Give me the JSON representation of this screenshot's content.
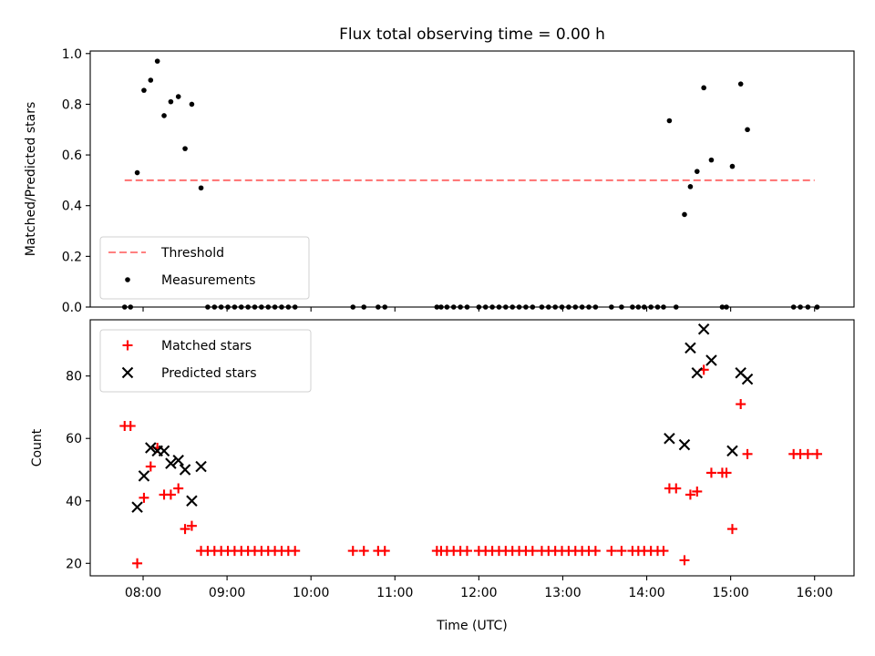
{
  "chart_data": [
    {
      "type": "scatter",
      "title": "Flux total observing time = 0.00 h",
      "xlabel": "",
      "ylabel": "Matched/Predicted stars",
      "x_unit": "hours UTC",
      "xlim": [
        7.37,
        16.47
      ],
      "ylim": [
        0.0,
        1.01
      ],
      "yticks": [
        0.0,
        0.2,
        0.4,
        0.6,
        0.8,
        1.0
      ],
      "ytick_labels": [
        "0.0",
        "0.2",
        "0.4",
        "0.6",
        "0.8",
        "1.0"
      ],
      "legend": {
        "position": "lower-left",
        "entries": [
          {
            "label": "Threshold",
            "kind": "dashed-line",
            "color": "#ff8080"
          },
          {
            "label": "Measurements",
            "kind": "dot",
            "color": "#000000"
          }
        ]
      },
      "threshold": {
        "name": "Threshold",
        "value": 0.5,
        "x_range": [
          7.78,
          16.0
        ],
        "color": "#ff7070"
      },
      "series": [
        {
          "name": "Measurements",
          "marker": "dot",
          "color": "#000000",
          "x": [
            7.78,
            7.85,
            7.93,
            8.01,
            8.09,
            8.17,
            8.25,
            8.33,
            8.42,
            8.5,
            8.58,
            8.69,
            8.77,
            8.85,
            8.93,
            9.01,
            9.09,
            9.17,
            9.25,
            9.33,
            9.41,
            9.49,
            9.57,
            9.65,
            9.73,
            9.81,
            10.5,
            10.63,
            10.8,
            10.88,
            11.5,
            11.55,
            11.62,
            11.7,
            11.78,
            11.86,
            12.0,
            12.08,
            12.16,
            12.24,
            12.32,
            12.4,
            12.48,
            12.56,
            12.64,
            12.75,
            12.83,
            12.91,
            12.99,
            13.07,
            13.15,
            13.23,
            13.31,
            13.39,
            13.58,
            13.7,
            13.83,
            13.9,
            13.97,
            14.05,
            14.13,
            14.2,
            14.27,
            14.35,
            14.45,
            14.52,
            14.6,
            14.68,
            14.77,
            14.9,
            14.95,
            15.02,
            15.12,
            15.2,
            15.75,
            15.83,
            15.92,
            16.03
          ],
          "y": [
            0,
            0,
            0.53,
            0.855,
            0.895,
            0.97,
            0.755,
            0.81,
            0.83,
            0.625,
            0.8,
            0.47,
            0,
            0,
            0,
            0,
            0,
            0,
            0,
            0,
            0,
            0,
            0,
            0,
            0,
            0,
            0,
            0,
            0,
            0,
            0,
            0,
            0,
            0,
            0,
            0,
            0,
            0,
            0,
            0,
            0,
            0,
            0,
            0,
            0,
            0,
            0,
            0,
            0,
            0,
            0,
            0,
            0,
            0,
            0,
            0,
            0,
            0,
            0,
            0,
            0,
            0,
            0.735,
            0,
            0.365,
            0.475,
            0.535,
            0.865,
            0.58,
            0,
            0,
            0.555,
            0.88,
            0.7,
            0,
            0,
            0,
            0
          ]
        }
      ]
    },
    {
      "type": "scatter",
      "title": "",
      "xlabel": "Time (UTC)",
      "ylabel": "Count",
      "x_unit": "hours UTC",
      "xlim": [
        7.37,
        16.47
      ],
      "ylim": [
        16.0,
        98.0
      ],
      "yticks": [
        20,
        40,
        60,
        80
      ],
      "ytick_labels": [
        "20",
        "40",
        "60",
        "80"
      ],
      "xticks": [
        8,
        9,
        10,
        11,
        12,
        13,
        14,
        15,
        16
      ],
      "xtick_labels": [
        "08:00",
        "09:00",
        "10:00",
        "11:00",
        "12:00",
        "13:00",
        "14:00",
        "15:00",
        "16:00"
      ],
      "legend": {
        "position": "top-left",
        "entries": [
          {
            "label": "Matched stars",
            "kind": "plus",
            "color": "#ff0000"
          },
          {
            "label": "Predicted stars",
            "kind": "x",
            "color": "#000000"
          }
        ]
      },
      "series": [
        {
          "name": "Matched stars",
          "marker": "plus",
          "color": "#ff0000",
          "x": [
            7.78,
            7.85,
            7.93,
            8.01,
            8.09,
            8.17,
            8.25,
            8.33,
            8.42,
            8.5,
            8.58,
            8.69,
            8.77,
            8.85,
            8.93,
            9.01,
            9.09,
            9.17,
            9.25,
            9.33,
            9.41,
            9.49,
            9.57,
            9.65,
            9.73,
            9.81,
            10.5,
            10.63,
            10.8,
            10.88,
            11.5,
            11.55,
            11.62,
            11.7,
            11.78,
            11.86,
            12.0,
            12.08,
            12.16,
            12.24,
            12.32,
            12.4,
            12.48,
            12.56,
            12.64,
            12.75,
            12.83,
            12.91,
            12.99,
            13.07,
            13.15,
            13.23,
            13.31,
            13.39,
            13.58,
            13.7,
            13.83,
            13.9,
            13.97,
            14.05,
            14.13,
            14.2,
            14.27,
            14.35,
            14.45,
            14.52,
            14.6,
            14.68,
            14.77,
            14.9,
            14.95,
            15.02,
            15.12,
            15.2,
            15.75,
            15.83,
            15.92,
            16.03
          ],
          "y": [
            64,
            64,
            20,
            41,
            51,
            57,
            42,
            42,
            44,
            31,
            32,
            24,
            24,
            24,
            24,
            24,
            24,
            24,
            24,
            24,
            24,
            24,
            24,
            24,
            24,
            24,
            24,
            24,
            24,
            24,
            24,
            24,
            24,
            24,
            24,
            24,
            24,
            24,
            24,
            24,
            24,
            24,
            24,
            24,
            24,
            24,
            24,
            24,
            24,
            24,
            24,
            24,
            24,
            24,
            24,
            24,
            24,
            24,
            24,
            24,
            24,
            24,
            44,
            44,
            21,
            42,
            43,
            82,
            49,
            49,
            49,
            31,
            71,
            55,
            55,
            55,
            55,
            55
          ]
        },
        {
          "name": "Predicted stars",
          "marker": "x",
          "color": "#000000",
          "x": [
            7.93,
            8.01,
            8.09,
            8.17,
            8.25,
            8.33,
            8.42,
            8.5,
            8.58,
            8.69,
            14.27,
            14.45,
            14.52,
            14.6,
            14.68,
            14.77,
            15.02,
            15.12,
            15.2
          ],
          "y": [
            38,
            48,
            57,
            56,
            56,
            52,
            53,
            50,
            40,
            51,
            60,
            58,
            89,
            81,
            95,
            85,
            56,
            81,
            79
          ]
        }
      ]
    }
  ]
}
